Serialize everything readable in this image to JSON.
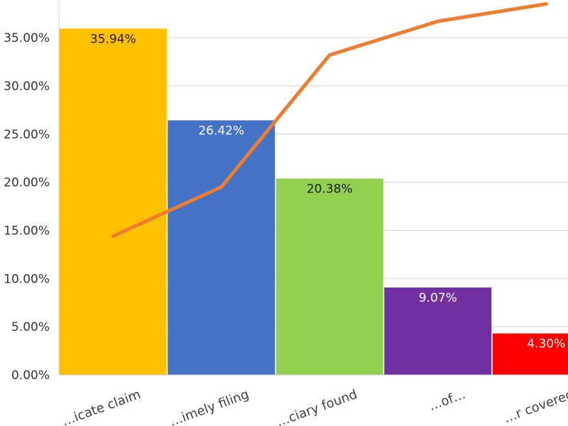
{
  "chart_data": {
    "type": "bar",
    "categories": [
      "…icate claim",
      "…imely filing",
      "…ciary found",
      "…of…",
      "…r covered"
    ],
    "series": [
      {
        "type": "bar",
        "values": [
          35.94,
          26.42,
          20.38,
          9.07,
          4.3
        ],
        "data_labels": [
          "35.94%",
          "26.42%",
          "20.38%",
          "9.07%",
          "4.30%"
        ],
        "colors": [
          "#FFC000",
          "#4472C4",
          "#92D050",
          "#7030A0",
          "#FF0000"
        ],
        "label_colors": [
          "#1a1a1a",
          "#ffffff",
          "#1a1a1a",
          "#ffffff",
          "#ffffff"
        ]
      },
      {
        "type": "line",
        "values": [
          14.4,
          19.5,
          33.2,
          36.7,
          38.5
        ],
        "color": "#ED7D31"
      }
    ],
    "yticks": [
      "0.00%",
      "5.00%",
      "10.00%",
      "15.00%",
      "20.00%",
      "25.00%",
      "30.00%",
      "35.00%"
    ],
    "ylim": [
      0,
      40
    ],
    "grid": true,
    "legend": false
  }
}
